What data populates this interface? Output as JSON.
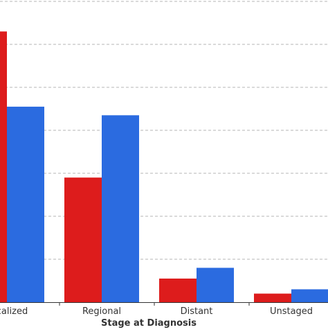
{
  "chart_data": {
    "type": "bar",
    "categories": [
      "Localized",
      "Regional",
      "Distant",
      "Unstaged"
    ],
    "series": [
      {
        "values": [
          63,
          29,
          5.5,
          2
        ],
        "color": "#dd1c1c"
      },
      {
        "values": [
          45.5,
          43.5,
          8,
          3
        ],
        "color": "#2b6be0"
      }
    ],
    "xlabel": "Stage at Diagnosis",
    "ylabel": "",
    "ylim": [
      0,
      70
    ],
    "grid": true
  }
}
